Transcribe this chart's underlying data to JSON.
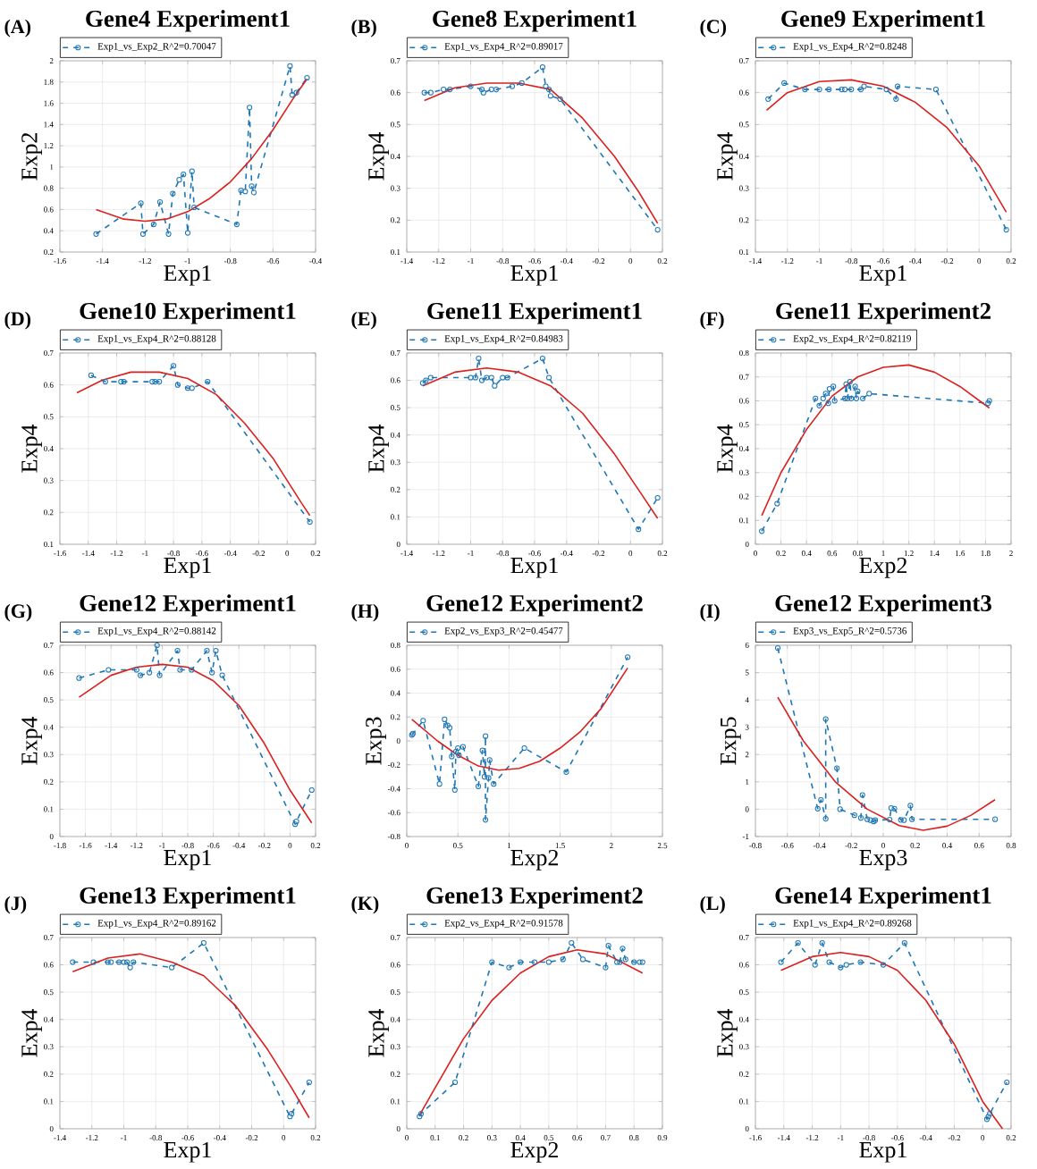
{
  "chart_data": [
    {
      "type": "line",
      "title": "Gene4 Experiment1",
      "annotations": [
        "(A)"
      ],
      "xlabel": "Exp1",
      "ylabel": "Exp2",
      "xlim": [
        -1.6,
        -0.4
      ],
      "ylim": [
        0.2,
        2
      ],
      "xticks": [
        -1.6,
        -1.4,
        -1.2,
        -1,
        -0.8,
        -0.6,
        -0.4
      ],
      "yticks": [
        0.2,
        0.4,
        0.6,
        0.8,
        1,
        1.2,
        1.4,
        1.6,
        1.8,
        2
      ],
      "grid": true,
      "legend": "top",
      "series": [
        {
          "name": "Exp1_vs_Exp2_R^2=0.70047",
          "color": "#1f77b4",
          "marker": "circle",
          "line_style": "dashed",
          "x": [
            -1.43,
            -1.22,
            -1.21,
            -1.16,
            -1.13,
            -1.09,
            -1.07,
            -1.04,
            -1.02,
            -1.0,
            -0.98,
            -0.97,
            -0.77,
            -0.75,
            -0.73,
            -0.71,
            -0.7,
            -0.69,
            -0.52,
            -0.51,
            -0.49,
            -0.44
          ],
          "values": [
            0.37,
            0.66,
            0.37,
            0.46,
            0.67,
            0.37,
            0.75,
            0.88,
            0.93,
            0.38,
            0.96,
            0.62,
            0.46,
            0.78,
            0.77,
            1.56,
            0.82,
            0.76,
            1.95,
            1.68,
            1.7,
            1.84
          ]
        },
        {
          "type": "line",
          "color": "#d92120",
          "line_style": "solid",
          "x": [
            -1.43,
            -1.3,
            -1.2,
            -1.1,
            -1.0,
            -0.9,
            -0.8,
            -0.7,
            -0.6,
            -0.5,
            -0.44
          ],
          "values": [
            0.6,
            0.51,
            0.49,
            0.51,
            0.58,
            0.7,
            0.86,
            1.08,
            1.35,
            1.66,
            1.83
          ]
        }
      ]
    },
    {
      "type": "line",
      "title": "Gene8 Experiment1",
      "annotations": [
        "(B)"
      ],
      "xlabel": "Exp1",
      "ylabel": "Exp4",
      "xlim": [
        -1.4,
        0.2
      ],
      "ylim": [
        0.1,
        0.7
      ],
      "xticks": [
        -1.4,
        -1.2,
        -1,
        -0.8,
        -0.6,
        -0.4,
        -0.2,
        0,
        0.2
      ],
      "yticks": [
        0.1,
        0.2,
        0.3,
        0.4,
        0.5,
        0.6,
        0.7
      ],
      "grid": true,
      "legend": "top",
      "series": [
        {
          "name": "Exp1_vs_Exp4_R^2=0.89017",
          "color": "#1f77b4",
          "marker": "circle",
          "line_style": "dashed",
          "x": [
            -1.29,
            -1.25,
            -1.17,
            -1.13,
            -1.0,
            -0.93,
            -0.92,
            -0.87,
            -0.84,
            -0.74,
            -0.68,
            -0.55,
            -0.53,
            -0.51,
            -0.5,
            -0.44,
            0.17
          ],
          "values": [
            0.6,
            0.6,
            0.61,
            0.61,
            0.62,
            0.61,
            0.6,
            0.61,
            0.61,
            0.62,
            0.63,
            0.68,
            0.62,
            0.61,
            0.59,
            0.58,
            0.17
          ]
        },
        {
          "type": "line",
          "color": "#d92120",
          "line_style": "solid",
          "x": [
            -1.29,
            -1.1,
            -0.9,
            -0.7,
            -0.5,
            -0.3,
            -0.1,
            0.05,
            0.17
          ],
          "values": [
            0.575,
            0.615,
            0.63,
            0.63,
            0.61,
            0.52,
            0.4,
            0.29,
            0.19
          ]
        }
      ]
    },
    {
      "type": "line",
      "title": "Gene9 Experiment1",
      "annotations": [
        "(C)"
      ],
      "xlabel": "Exp1",
      "ylabel": "Exp4",
      "xlim": [
        -1.4,
        0.2
      ],
      "ylim": [
        0.1,
        0.7
      ],
      "xticks": [
        -1.4,
        -1.2,
        -1,
        -0.8,
        -0.6,
        -0.4,
        -0.2,
        0,
        0.2
      ],
      "yticks": [
        0.1,
        0.2,
        0.3,
        0.4,
        0.5,
        0.6,
        0.7
      ],
      "grid": true,
      "legend": "top",
      "series": [
        {
          "name": "Exp1_vs_Exp4_R^2=0.8248",
          "color": "#1f77b4",
          "marker": "circle",
          "line_style": "dashed",
          "x": [
            -1.32,
            -1.22,
            -1.09,
            -1.0,
            -0.94,
            -0.86,
            -0.84,
            -0.8,
            -0.74,
            -0.72,
            -0.58,
            -0.52,
            -0.51,
            -0.27,
            0.17
          ],
          "values": [
            0.58,
            0.63,
            0.61,
            0.61,
            0.61,
            0.61,
            0.61,
            0.61,
            0.61,
            0.62,
            0.61,
            0.58,
            0.62,
            0.61,
            0.17
          ]
        },
        {
          "type": "line",
          "color": "#d92120",
          "line_style": "solid",
          "x": [
            -1.33,
            -1.2,
            -1.0,
            -0.8,
            -0.6,
            -0.4,
            -0.2,
            0,
            0.17
          ],
          "values": [
            0.545,
            0.6,
            0.635,
            0.64,
            0.62,
            0.57,
            0.49,
            0.37,
            0.225
          ]
        }
      ]
    },
    {
      "type": "line",
      "title": "Gene10 Experiment1",
      "annotations": [
        "(D)"
      ],
      "xlabel": "Exp1",
      "ylabel": "Exp4",
      "xlim": [
        -1.6,
        0.2
      ],
      "ylim": [
        0.1,
        0.7
      ],
      "xticks": [
        -1.6,
        -1.4,
        -1.2,
        -1,
        -0.8,
        -0.6,
        -0.4,
        -0.2,
        0,
        0.2
      ],
      "yticks": [
        0.1,
        0.2,
        0.3,
        0.4,
        0.5,
        0.6,
        0.7
      ],
      "grid": true,
      "legend": "top",
      "series": [
        {
          "name": "Exp1_vs_Exp4_R^2=0.88128",
          "color": "#1f77b4",
          "marker": "circle",
          "line_style": "dashed",
          "x": [
            -1.38,
            -1.28,
            -1.17,
            -1.15,
            -0.95,
            -0.93,
            -0.9,
            -0.8,
            -0.77,
            -0.7,
            -0.67,
            -0.56,
            0.16
          ],
          "values": [
            0.63,
            0.61,
            0.61,
            0.61,
            0.61,
            0.61,
            0.61,
            0.66,
            0.6,
            0.59,
            0.59,
            0.61,
            0.17
          ]
        },
        {
          "type": "line",
          "color": "#d92120",
          "line_style": "solid",
          "x": [
            -1.48,
            -1.3,
            -1.1,
            -0.9,
            -0.7,
            -0.5,
            -0.3,
            -0.1,
            0.1,
            0.16
          ],
          "values": [
            0.575,
            0.615,
            0.64,
            0.64,
            0.62,
            0.57,
            0.48,
            0.37,
            0.23,
            0.19
          ]
        }
      ]
    },
    {
      "type": "line",
      "title": "Gene11 Experiment1",
      "annotations": [
        "(E)"
      ],
      "xlabel": "Exp1",
      "ylabel": "Exp4",
      "xlim": [
        -1.4,
        0.2
      ],
      "ylim": [
        0,
        0.7
      ],
      "xticks": [
        -1.4,
        -1.2,
        -1,
        -0.8,
        -0.6,
        -0.4,
        -0.2,
        0,
        0.2
      ],
      "yticks": [
        0,
        0.1,
        0.2,
        0.3,
        0.4,
        0.5,
        0.6,
        0.7
      ],
      "grid": true,
      "legend": "top",
      "series": [
        {
          "name": "Exp1_vs_Exp4_R^2=0.84983",
          "color": "#1f77b4",
          "marker": "circle",
          "line_style": "dashed",
          "x": [
            -1.3,
            -1.28,
            -1.25,
            -1.0,
            -0.97,
            -0.95,
            -0.93,
            -0.9,
            -0.87,
            -0.85,
            -0.8,
            -0.77,
            -0.55,
            -0.51,
            0.05,
            0.17
          ],
          "values": [
            0.59,
            0.6,
            0.61,
            0.61,
            0.61,
            0.68,
            0.6,
            0.61,
            0.61,
            0.58,
            0.61,
            0.61,
            0.68,
            0.61,
            0.055,
            0.17
          ]
        },
        {
          "type": "line",
          "color": "#d92120",
          "line_style": "solid",
          "x": [
            -1.3,
            -1.1,
            -0.9,
            -0.7,
            -0.5,
            -0.3,
            -0.1,
            0.05,
            0.17
          ],
          "values": [
            0.58,
            0.63,
            0.645,
            0.63,
            0.58,
            0.48,
            0.33,
            0.2,
            0.095
          ]
        }
      ]
    },
    {
      "type": "line",
      "title": "Gene11 Experiment2",
      "annotations": [
        "(F)"
      ],
      "xlabel": "Exp2",
      "ylabel": "Exp4",
      "xlim": [
        0,
        2
      ],
      "ylim": [
        0,
        0.8
      ],
      "xticks": [
        0,
        0.2,
        0.4,
        0.6,
        0.8,
        1,
        1.2,
        1.4,
        1.6,
        1.8,
        2
      ],
      "yticks": [
        0,
        0.1,
        0.2,
        0.3,
        0.4,
        0.5,
        0.6,
        0.7,
        0.8
      ],
      "grid": true,
      "legend": "top",
      "series": [
        {
          "name": "Exp2_vs_Exp4_R^2=0.82119",
          "color": "#1f77b4",
          "marker": "circle",
          "line_style": "dashed",
          "x": [
            0.05,
            0.17,
            0.47,
            0.5,
            0.53,
            0.55,
            0.57,
            0.58,
            0.61,
            0.62,
            0.7,
            0.71,
            0.72,
            0.74,
            0.75,
            0.78,
            0.79,
            0.8,
            0.84,
            0.89,
            1.82,
            1.83
          ],
          "values": [
            0.055,
            0.17,
            0.61,
            0.58,
            0.61,
            0.63,
            0.59,
            0.65,
            0.66,
            0.6,
            0.61,
            0.67,
            0.61,
            0.68,
            0.61,
            0.66,
            0.61,
            0.64,
            0.61,
            0.63,
            0.59,
            0.6
          ]
        },
        {
          "type": "line",
          "color": "#d92120",
          "line_style": "solid",
          "x": [
            0.05,
            0.2,
            0.4,
            0.6,
            0.8,
            1.0,
            1.2,
            1.4,
            1.6,
            1.83
          ],
          "values": [
            0.12,
            0.3,
            0.48,
            0.62,
            0.7,
            0.74,
            0.75,
            0.72,
            0.66,
            0.57
          ]
        }
      ]
    },
    {
      "type": "line",
      "title": "Gene12 Experiment1",
      "annotations": [
        "(G)"
      ],
      "xlabel": "Exp1",
      "ylabel": "Exp4",
      "xlim": [
        -1.8,
        0.2
      ],
      "ylim": [
        0,
        0.7
      ],
      "xticks": [
        -1.8,
        -1.6,
        -1.4,
        -1.2,
        -1,
        -0.8,
        -0.6,
        -0.4,
        -0.2,
        0,
        0.2
      ],
      "yticks": [
        0,
        0.1,
        0.2,
        0.3,
        0.4,
        0.5,
        0.6,
        0.7
      ],
      "grid": true,
      "legend": "top",
      "series": [
        {
          "name": "Exp1_vs_Exp4_R^2=0.88142",
          "color": "#1f77b4",
          "marker": "circle",
          "line_style": "dashed",
          "x": [
            -1.65,
            -1.42,
            -1.2,
            -1.17,
            -1.1,
            -1.04,
            -1.02,
            -0.88,
            -0.86,
            -0.77,
            -0.65,
            -0.61,
            -0.58,
            -0.53,
            0.04,
            0.05,
            0.17
          ],
          "values": [
            0.58,
            0.61,
            0.61,
            0.59,
            0.6,
            0.7,
            0.59,
            0.68,
            0.61,
            0.61,
            0.68,
            0.6,
            0.68,
            0.59,
            0.045,
            0.055,
            0.17
          ]
        },
        {
          "type": "line",
          "color": "#d92120",
          "line_style": "solid",
          "x": [
            -1.65,
            -1.4,
            -1.2,
            -1.0,
            -0.8,
            -0.6,
            -0.4,
            -0.2,
            0,
            0.17
          ],
          "values": [
            0.51,
            0.59,
            0.62,
            0.63,
            0.62,
            0.57,
            0.48,
            0.34,
            0.17,
            0.05
          ]
        }
      ]
    },
    {
      "type": "line",
      "title": "Gene12 Experiment2",
      "annotations": [
        "(H)"
      ],
      "xlabel": "Exp2",
      "ylabel": "Exp3",
      "xlim": [
        0,
        2.5
      ],
      "ylim": [
        -0.8,
        0.8
      ],
      "xticks": [
        0,
        0.5,
        1,
        1.5,
        2,
        2.5
      ],
      "yticks": [
        -0.8,
        -0.6,
        -0.4,
        -0.2,
        0,
        0.2,
        0.4,
        0.6,
        0.8
      ],
      "grid": true,
      "legend": "top",
      "series": [
        {
          "name": "Exp2_vs_Exp3_R^2=0.45477",
          "color": "#1f77b4",
          "marker": "circle",
          "line_style": "dashed",
          "x": [
            0.05,
            0.06,
            0.16,
            0.32,
            0.37,
            0.4,
            0.42,
            0.44,
            0.47,
            0.48,
            0.5,
            0.51,
            0.55,
            0.7,
            0.74,
            0.76,
            0.77,
            0.77,
            0.8,
            0.81,
            0.85,
            1.15,
            1.56,
            2.16
          ],
          "values": [
            0.05,
            0.06,
            0.17,
            -0.36,
            0.18,
            0.13,
            0.11,
            -0.13,
            -0.41,
            -0.09,
            -0.06,
            -0.12,
            -0.05,
            -0.38,
            -0.08,
            -0.3,
            0.04,
            -0.66,
            -0.31,
            -0.16,
            -0.36,
            -0.06,
            -0.26,
            0.7
          ]
        },
        {
          "type": "line",
          "color": "#d92120",
          "line_style": "solid",
          "x": [
            0.05,
            0.3,
            0.5,
            0.7,
            0.9,
            1.1,
            1.3,
            1.5,
            1.7,
            1.9,
            2.16
          ],
          "values": [
            0.18,
            0.0,
            -0.12,
            -0.21,
            -0.245,
            -0.23,
            -0.17,
            -0.06,
            0.08,
            0.27,
            0.61
          ]
        }
      ]
    },
    {
      "type": "line",
      "title": "Gene12 Experiment3",
      "annotations": [
        "(I)"
      ],
      "xlabel": "Exp3",
      "ylabel": "Exp5",
      "xlim": [
        -0.8,
        0.8
      ],
      "ylim": [
        -1,
        6
      ],
      "xticks": [
        -0.8,
        -0.6,
        -0.4,
        -0.2,
        0,
        0.2,
        0.4,
        0.6,
        0.8
      ],
      "yticks": [
        -1,
        0,
        1,
        2,
        3,
        4,
        5,
        6
      ],
      "grid": true,
      "legend": "top",
      "series": [
        {
          "name": "Exp3_vs_Exp5_R^2=0.5736",
          "color": "#1f77b4",
          "marker": "circle",
          "line_style": "dashed",
          "x": [
            -0.66,
            -0.41,
            -0.39,
            -0.36,
            -0.36,
            -0.29,
            -0.27,
            -0.18,
            -0.14,
            -0.13,
            -0.1,
            -0.08,
            -0.06,
            -0.05,
            0.04,
            0.05,
            0.07,
            0.11,
            0.13,
            0.17,
            0.18,
            0.7
          ],
          "values": [
            5.9,
            0.02,
            0.34,
            -0.35,
            3.3,
            1.5,
            0.0,
            -0.22,
            -0.32,
            0.52,
            -0.37,
            -0.4,
            -0.45,
            -0.4,
            -0.38,
            0.04,
            0.02,
            -0.39,
            -0.4,
            0.13,
            -0.37,
            -0.37
          ]
        },
        {
          "type": "line",
          "color": "#d92120",
          "line_style": "solid",
          "x": [
            -0.66,
            -0.5,
            -0.3,
            -0.1,
            0.1,
            0.25,
            0.4,
            0.55,
            0.7
          ],
          "values": [
            4.1,
            2.5,
            1.0,
            0.0,
            -0.6,
            -0.77,
            -0.62,
            -0.22,
            0.35
          ]
        }
      ]
    },
    {
      "type": "line",
      "title": "Gene13 Experiment1",
      "annotations": [
        "(J)"
      ],
      "xlabel": "Exp1",
      "ylabel": "Exp4",
      "xlim": [
        -1.4,
        0.2
      ],
      "ylim": [
        0,
        0.7
      ],
      "xticks": [
        -1.4,
        -1.2,
        -1,
        -0.8,
        -0.6,
        -0.4,
        -0.2,
        0,
        0.2
      ],
      "yticks": [
        0,
        0.1,
        0.2,
        0.3,
        0.4,
        0.5,
        0.6,
        0.7
      ],
      "grid": true,
      "legend": "top",
      "series": [
        {
          "name": "Exp1_vs_Exp4_R^2=0.89162",
          "color": "#1f77b4",
          "marker": "circle",
          "line_style": "dashed",
          "x": [
            -1.32,
            -1.19,
            -1.1,
            -1.08,
            -1.03,
            -1.0,
            -0.98,
            -0.96,
            -0.94,
            -0.7,
            -0.5,
            0.04,
            0.05,
            0.16
          ],
          "values": [
            0.61,
            0.61,
            0.61,
            0.61,
            0.61,
            0.61,
            0.61,
            0.59,
            0.61,
            0.59,
            0.68,
            0.045,
            0.055,
            0.17
          ]
        },
        {
          "type": "line",
          "color": "#d92120",
          "line_style": "solid",
          "x": [
            -1.32,
            -1.1,
            -0.9,
            -0.7,
            -0.5,
            -0.3,
            -0.1,
            0.05,
            0.16
          ],
          "values": [
            0.575,
            0.625,
            0.64,
            0.61,
            0.56,
            0.45,
            0.29,
            0.15,
            0.04
          ]
        }
      ]
    },
    {
      "type": "line",
      "title": "Gene13 Experiment2",
      "annotations": [
        "(K)"
      ],
      "xlabel": "Exp2",
      "ylabel": "Exp4",
      "xlim": [
        0,
        0.9
      ],
      "ylim": [
        0,
        0.7
      ],
      "xticks": [
        0,
        0.1,
        0.2,
        0.3,
        0.4,
        0.5,
        0.6,
        0.7,
        0.8,
        0.9
      ],
      "yticks": [
        0,
        0.1,
        0.2,
        0.3,
        0.4,
        0.5,
        0.6,
        0.7
      ],
      "grid": true,
      "legend": "top",
      "series": [
        {
          "name": "Exp2_vs_Exp4_R^2=0.91578",
          "color": "#1f77b4",
          "marker": "circle",
          "line_style": "dashed",
          "x": [
            0.045,
            0.05,
            0.17,
            0.3,
            0.36,
            0.4,
            0.45,
            0.5,
            0.55,
            0.58,
            0.62,
            0.7,
            0.71,
            0.74,
            0.75,
            0.76,
            0.77,
            0.8,
            0.82,
            0.83
          ],
          "values": [
            0.045,
            0.055,
            0.17,
            0.61,
            0.59,
            0.61,
            0.61,
            0.61,
            0.62,
            0.68,
            0.62,
            0.59,
            0.67,
            0.61,
            0.61,
            0.66,
            0.62,
            0.61,
            0.61,
            0.61
          ]
        },
        {
          "type": "line",
          "color": "#d92120",
          "line_style": "solid",
          "x": [
            0.045,
            0.1,
            0.2,
            0.3,
            0.4,
            0.5,
            0.6,
            0.7,
            0.83
          ],
          "values": [
            0.05,
            0.15,
            0.33,
            0.47,
            0.57,
            0.63,
            0.655,
            0.64,
            0.57
          ]
        }
      ]
    },
    {
      "type": "line",
      "title": "Gene14 Experiment1",
      "annotations": [
        "(L)"
      ],
      "xlabel": "Exp1",
      "ylabel": "Exp4",
      "xlim": [
        -1.6,
        0.2
      ],
      "ylim": [
        0,
        0.7
      ],
      "xticks": [
        -1.6,
        -1.4,
        -1.2,
        -1,
        -0.8,
        -0.6,
        -0.4,
        -0.2,
        0,
        0.2
      ],
      "yticks": [
        0,
        0.1,
        0.2,
        0.3,
        0.4,
        0.5,
        0.6,
        0.7
      ],
      "grid": true,
      "legend": "top",
      "series": [
        {
          "name": "Exp1_vs_Exp4_R^2=0.89268",
          "color": "#1f77b4",
          "marker": "circle",
          "line_style": "dashed",
          "x": [
            -1.42,
            -1.3,
            -1.18,
            -1.13,
            -1.08,
            -1.0,
            -0.96,
            -0.86,
            -0.7,
            -0.55,
            0.03,
            0.04,
            0.05,
            0.17
          ],
          "values": [
            0.61,
            0.68,
            0.6,
            0.68,
            0.61,
            0.59,
            0.6,
            0.61,
            0.6,
            0.68,
            0.035,
            0.045,
            0.055,
            0.17
          ]
        },
        {
          "type": "line",
          "color": "#d92120",
          "line_style": "solid",
          "x": [
            -1.42,
            -1.2,
            -1.0,
            -0.8,
            -0.6,
            -0.4,
            -0.2,
            0,
            0.14
          ],
          "values": [
            0.58,
            0.63,
            0.645,
            0.63,
            0.58,
            0.47,
            0.31,
            0.1,
            0.0
          ]
        }
      ]
    }
  ]
}
